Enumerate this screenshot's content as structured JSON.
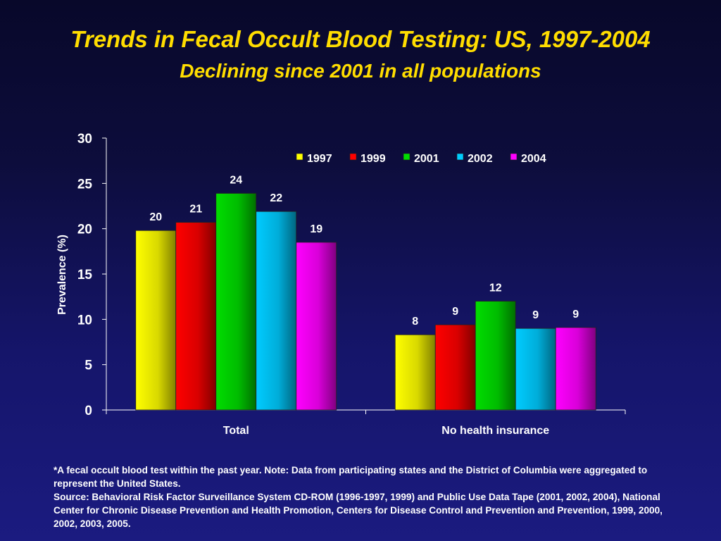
{
  "slide": {
    "title": "Trends in Fecal Occult Blood Testing: US, 1997-2004",
    "subtitle": "Declining since 2001 in all populations",
    "footnote": "*A fecal occult blood test within the past year. Note: Data from participating states and the District of Columbia were aggregated to represent the United States.",
    "source": "Source: Behavioral Risk Factor Surveillance System CD-ROM (1996-1997, 1999) and Public Use Data Tape (2001, 2002, 2004), National Center for Chronic Disease Prevention and Health Promotion, Centers for Disease Control and Prevention and Prevention, 1999, 2000, 2002, 2003, 2005."
  },
  "chart_data": {
    "type": "bar",
    "title": "",
    "xlabel": "",
    "ylabel": "Prevalence (%)",
    "categories": [
      "Total",
      "No health insurance"
    ],
    "series": [
      {
        "name": "1997",
        "color": "#ffff00",
        "values": [
          19.8,
          8.3
        ],
        "labels": [
          "20",
          "8"
        ]
      },
      {
        "name": "1999",
        "color": "#ff0000",
        "values": [
          20.7,
          9.4
        ],
        "labels": [
          "21",
          "9"
        ]
      },
      {
        "name": "2001",
        "color": "#00dd00",
        "values": [
          23.9,
          12.0
        ],
        "labels": [
          "24",
          "12"
        ]
      },
      {
        "name": "2002",
        "color": "#00ccff",
        "values": [
          21.9,
          9.0
        ],
        "labels": [
          "22",
          "9"
        ]
      },
      {
        "name": "2004",
        "color": "#ff00ff",
        "values": [
          18.5,
          9.1
        ],
        "labels": [
          "19",
          "9"
        ]
      }
    ],
    "ylim": [
      0,
      30
    ],
    "yticks": [
      0,
      5,
      10,
      15,
      20,
      25,
      30
    ],
    "grid": false,
    "legend": "top-right"
  }
}
